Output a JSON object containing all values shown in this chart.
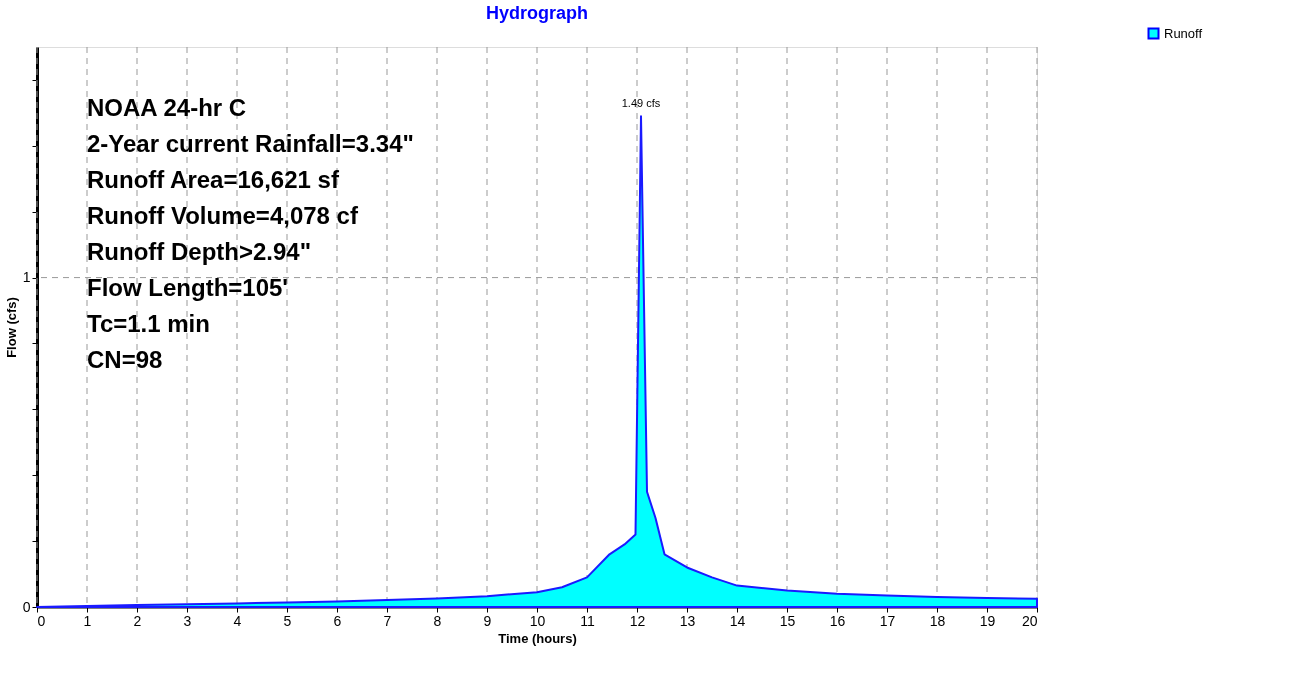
{
  "chart_data": {
    "type": "area",
    "title": "Hydrograph",
    "xlabel": "Time  (hours)",
    "ylabel": "Flow  (cfs)",
    "x": [
      0,
      1,
      2,
      3,
      4,
      5,
      6,
      7,
      8,
      9,
      10,
      10.5,
      11,
      11.45,
      11.75,
      11.97,
      12.08,
      12.2,
      12.37,
      12.55,
      13,
      13.5,
      14,
      15,
      16,
      17,
      18,
      19,
      20
    ],
    "series": [
      {
        "name": "Runoff",
        "color": "#00ffff",
        "values": [
          0,
          0.003,
          0.006,
          0.008,
          0.011,
          0.014,
          0.017,
          0.021,
          0.026,
          0.033,
          0.045,
          0.06,
          0.09,
          0.16,
          0.19,
          0.22,
          1.49,
          0.35,
          0.27,
          0.16,
          0.12,
          0.09,
          0.065,
          0.05,
          0.04,
          0.035,
          0.03,
          0.027,
          0.025
        ],
        "value_labels": [
          null,
          null,
          null,
          null,
          null,
          null,
          null,
          null,
          null,
          null,
          null,
          null,
          null,
          null,
          null,
          null,
          "1.49 cfs",
          null,
          null,
          null,
          null,
          null,
          null,
          null,
          null,
          null,
          null,
          null,
          null
        ]
      }
    ],
    "xlim": [
      0,
      20
    ],
    "xticks": [
      0,
      1,
      2,
      3,
      4,
      5,
      6,
      7,
      8,
      9,
      10,
      11,
      12,
      13,
      14,
      15,
      16,
      17,
      18,
      19,
      20
    ],
    "ylim": [
      0,
      1.7
    ],
    "yticks": [
      0,
      {
        "value": 0.2,
        "label": null
      },
      {
        "value": 0.4,
        "label": null
      },
      {
        "value": 0.6,
        "label": null
      },
      {
        "value": 0.8,
        "label": null
      },
      1,
      {
        "value": 1.2,
        "label": null
      },
      {
        "value": 1.4,
        "label": null
      },
      {
        "value": 1.6,
        "label": null
      }
    ],
    "grid": true,
    "legend": "top right",
    "annotations": [
      "NOAA 24-hr C",
      "2-Year current Rainfall=3.34\"",
      "Runoff Area=16,621 sf",
      "Runoff Volume=4,078 cf",
      "Runoff Depth>2.94\"",
      "Flow Length=105'",
      "Tc=1.1 min",
      "CN=98"
    ]
  }
}
